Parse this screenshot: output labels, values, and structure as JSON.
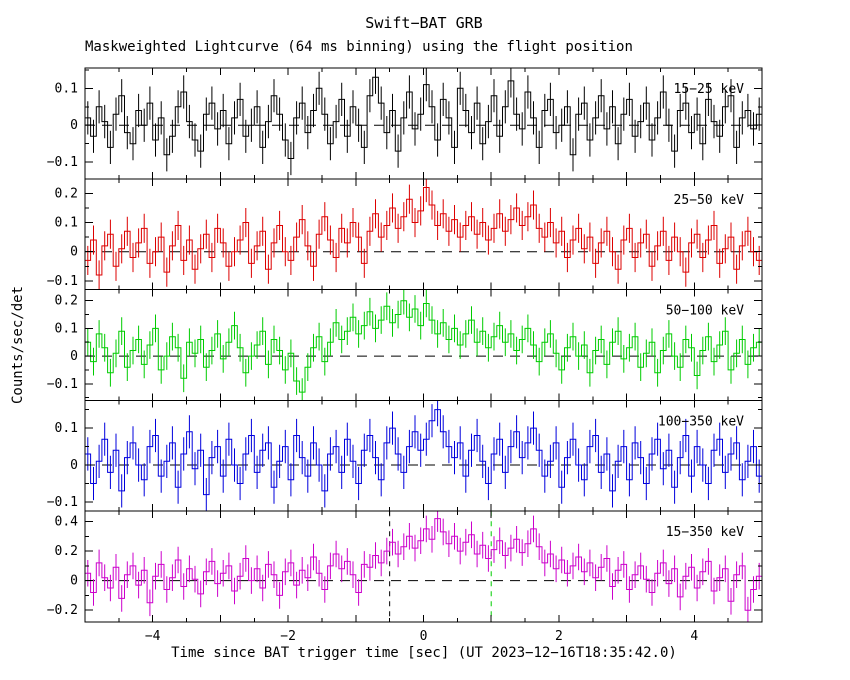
{
  "titles": {
    "main": "Swift−BAT GRB",
    "sub": "Maskweighted Lightcurve (64 ms binning) using the flight position"
  },
  "axes": {
    "ylabel": "Counts/sec/det",
    "xlabel": "Time since BAT trigger time [sec] (UT 2023−12−16T18:35:42.0)",
    "xmin": -5,
    "xmax": 5,
    "xticks_major": [
      -4,
      -2,
      0,
      2,
      4
    ],
    "xtick_major_step": 1,
    "xtick_minor_step": 0.5
  },
  "chart_data": {
    "type": "line",
    "title": "Swift−BAT GRB Maskweighted Lightcurve (64 ms binning) using the flight position",
    "xlabel": "Time since BAT trigger time [sec] (UT 2023−12−16T18:35:42.0)",
    "ylabel": "Counts/sec/det",
    "x_start": -5,
    "x_end": 5,
    "grid": false,
    "legend_position": "inside-top-right-per-panel",
    "panels": [
      {
        "label": "15−25 keV",
        "color": "#000000",
        "ymin": -0.145,
        "ymax": 0.155,
        "yticks": [
          0.1,
          0,
          -0.1
        ],
        "ytick_minor_step": 0.05,
        "err": 0.045,
        "values": [
          0.02,
          -0.03,
          0.05,
          0.01,
          -0.06,
          0.03,
          0.08,
          -0.02,
          -0.05,
          0.04,
          0.0,
          0.06,
          -0.04,
          0.02,
          -0.08,
          -0.03,
          0.05,
          0.09,
          0.01,
          -0.04,
          -0.07,
          0.03,
          0.06,
          -0.01,
          0.04,
          -0.05,
          0.02,
          0.07,
          -0.03,
          0.0,
          0.05,
          -0.06,
          0.01,
          0.08,
          0.03,
          -0.04,
          -0.09,
          0.02,
          0.06,
          -0.02,
          0.04,
          0.1,
          0.03,
          -0.05,
          0.01,
          0.07,
          -0.03,
          0.05,
          0.0,
          -0.06,
          0.08,
          0.13,
          0.06,
          -0.02,
          0.04,
          -0.07,
          0.02,
          0.09,
          -0.01,
          0.03,
          0.11,
          0.05,
          -0.04,
          0.07,
          0.02,
          -0.06,
          0.1,
          0.04,
          -0.02,
          0.06,
          -0.05,
          0.01,
          0.08,
          -0.03,
          0.05,
          0.12,
          0.03,
          -0.01,
          0.09,
          0.02,
          -0.06,
          0.04,
          0.07,
          -0.02,
          0.0,
          0.05,
          -0.08,
          0.03,
          0.06,
          -0.04,
          0.02,
          0.08,
          -0.01,
          0.05,
          -0.05,
          0.03,
          0.07,
          -0.03,
          0.01,
          0.06,
          -0.04,
          0.02,
          0.09,
          0.0,
          -0.07,
          0.04,
          0.06,
          -0.02,
          0.03,
          -0.05,
          0.07,
          0.01,
          -0.03,
          0.05,
          0.08,
          -0.06,
          0.02,
          0.04,
          -0.01,
          0.03
        ]
      },
      {
        "label": "25−50 keV",
        "color": "#dd0000",
        "ymin": -0.13,
        "ymax": 0.25,
        "yticks": [
          0.2,
          0.1,
          0,
          -0.1
        ],
        "ytick_minor_step": 0.05,
        "err": 0.05,
        "values": [
          -0.03,
          0.04,
          -0.08,
          0.02,
          0.06,
          -0.05,
          0.01,
          0.07,
          -0.02,
          0.03,
          0.08,
          -0.04,
          0.0,
          0.05,
          -0.07,
          0.02,
          0.09,
          -0.03,
          0.04,
          -0.06,
          0.01,
          0.06,
          -0.02,
          0.08,
          0.03,
          -0.05,
          0.0,
          0.04,
          0.1,
          -0.04,
          0.02,
          0.07,
          -0.06,
          0.03,
          0.09,
          0.0,
          -0.03,
          0.05,
          0.11,
          0.02,
          -0.05,
          0.06,
          0.12,
          0.04,
          -0.02,
          0.08,
          0.03,
          0.1,
          0.05,
          -0.04,
          0.07,
          0.13,
          0.05,
          0.09,
          0.15,
          0.08,
          0.12,
          0.18,
          0.1,
          0.14,
          0.22,
          0.16,
          0.09,
          0.13,
          0.07,
          0.11,
          0.05,
          0.09,
          0.12,
          0.06,
          0.1,
          0.04,
          0.08,
          0.13,
          0.07,
          0.11,
          0.15,
          0.09,
          0.12,
          0.16,
          0.08,
          0.05,
          0.1,
          0.03,
          0.07,
          -0.02,
          0.04,
          0.08,
          0.01,
          0.05,
          -0.04,
          0.03,
          0.07,
          0.0,
          -0.06,
          0.04,
          0.08,
          -0.02,
          0.03,
          0.06,
          -0.05,
          0.02,
          0.07,
          -0.03,
          0.05,
          0.0,
          -0.07,
          0.03,
          0.06,
          -0.02,
          0.04,
          0.09,
          -0.04,
          0.01,
          0.05,
          -0.06,
          0.02,
          0.07,
          0.0,
          -0.03
        ]
      },
      {
        "label": "50−100 keV",
        "color": "#00cc00",
        "ymin": -0.16,
        "ymax": 0.24,
        "yticks": [
          0.2,
          0.1,
          0,
          -0.1
        ],
        "ytick_minor_step": 0.05,
        "err": 0.05,
        "values": [
          0.05,
          -0.02,
          0.08,
          0.03,
          -0.06,
          0.01,
          0.09,
          -0.04,
          0.02,
          0.06,
          -0.03,
          0.04,
          0.1,
          -0.05,
          0.0,
          0.07,
          0.03,
          -0.08,
          0.05,
          0.01,
          0.06,
          -0.04,
          0.02,
          0.08,
          -0.01,
          0.05,
          0.11,
          0.03,
          -0.06,
          0.0,
          0.04,
          0.09,
          -0.03,
          0.06,
          0.02,
          -0.05,
          0.01,
          -0.09,
          -0.13,
          -0.04,
          0.03,
          0.07,
          -0.02,
          0.05,
          0.12,
          0.06,
          0.09,
          0.14,
          0.08,
          0.11,
          0.16,
          0.1,
          0.13,
          0.18,
          0.12,
          0.15,
          0.2,
          0.14,
          0.17,
          0.11,
          0.19,
          0.13,
          0.08,
          0.12,
          0.06,
          0.1,
          0.04,
          0.08,
          0.13,
          0.05,
          0.09,
          0.03,
          0.07,
          0.11,
          0.05,
          0.08,
          0.02,
          0.06,
          0.1,
          0.04,
          -0.02,
          0.05,
          0.08,
          0.01,
          -0.05,
          0.03,
          0.07,
          0.0,
          0.04,
          -0.06,
          0.02,
          0.06,
          -0.03,
          0.05,
          0.09,
          -0.01,
          0.03,
          0.07,
          -0.04,
          0.01,
          0.05,
          -0.06,
          0.02,
          0.08,
          0.0,
          -0.04,
          0.06,
          0.03,
          -0.07,
          0.02,
          0.07,
          -0.02,
          0.04,
          0.09,
          -0.05,
          0.01,
          0.06,
          -0.03,
          0.03,
          0.05
        ]
      },
      {
        "label": "100−350 keV",
        "color": "#0000dd",
        "ymin": -0.125,
        "ymax": 0.175,
        "yticks": [
          0.1,
          0,
          -0.1
        ],
        "ytick_minor_step": 0.05,
        "err": 0.045,
        "values": [
          0.03,
          -0.05,
          0.01,
          0.07,
          -0.02,
          0.04,
          -0.07,
          0.02,
          0.06,
          0.0,
          -0.04,
          0.05,
          0.08,
          -0.03,
          0.01,
          0.06,
          -0.06,
          0.03,
          0.09,
          -0.01,
          0.04,
          -0.08,
          0.02,
          0.05,
          -0.03,
          0.07,
          0.0,
          -0.05,
          0.03,
          0.08,
          -0.02,
          0.04,
          0.06,
          -0.06,
          0.01,
          0.05,
          -0.04,
          0.08,
          0.02,
          -0.03,
          0.06,
          0.0,
          -0.07,
          0.03,
          0.05,
          -0.02,
          0.07,
          0.01,
          -0.05,
          0.04,
          0.08,
          0.02,
          -0.04,
          0.06,
          0.1,
          0.03,
          -0.02,
          0.05,
          0.09,
          0.04,
          0.07,
          0.12,
          0.15,
          0.09,
          0.05,
          0.02,
          0.06,
          -0.03,
          0.04,
          0.08,
          0.01,
          -0.05,
          0.03,
          0.07,
          -0.02,
          0.05,
          0.09,
          0.02,
          0.06,
          0.1,
          0.04,
          -0.03,
          0.01,
          0.06,
          -0.06,
          0.02,
          0.07,
          0.0,
          -0.04,
          0.05,
          0.08,
          -0.02,
          0.03,
          -0.07,
          0.01,
          0.05,
          -0.04,
          0.06,
          0.02,
          -0.05,
          0.03,
          0.07,
          -0.01,
          0.04,
          -0.06,
          0.02,
          0.08,
          -0.03,
          0.05,
          0.0,
          -0.05,
          0.04,
          0.07,
          -0.02,
          0.03,
          0.06,
          -0.04,
          0.01,
          0.05,
          -0.03
        ]
      },
      {
        "label": "15−350 keV",
        "color": "#cc00cc",
        "ymin": -0.28,
        "ymax": 0.47,
        "yticks": [
          0.4,
          0.2,
          0,
          -0.2
        ],
        "ytick_minor_step": 0.1,
        "err": 0.09,
        "markers": [
          {
            "x": -0.5,
            "color": "#000000"
          },
          {
            "x": 1.0,
            "color": "#00cc00"
          }
        ],
        "values": [
          0.05,
          -0.08,
          0.12,
          0.02,
          -0.05,
          0.09,
          -0.12,
          0.04,
          0.1,
          -0.03,
          0.07,
          -0.15,
          0.03,
          0.11,
          -0.06,
          0.02,
          0.14,
          -0.04,
          0.08,
          0.01,
          -0.09,
          0.06,
          0.13,
          -0.02,
          0.05,
          0.1,
          -0.07,
          0.03,
          0.15,
          0.0,
          0.08,
          -0.05,
          0.11,
          0.04,
          -0.1,
          0.06,
          0.12,
          -0.03,
          0.07,
          0.02,
          0.16,
          0.05,
          -0.06,
          0.1,
          0.18,
          0.08,
          0.13,
          0.04,
          -0.08,
          0.11,
          0.09,
          0.17,
          0.12,
          0.2,
          0.26,
          0.18,
          0.23,
          0.3,
          0.22,
          0.27,
          0.35,
          0.28,
          0.42,
          0.33,
          0.25,
          0.3,
          0.2,
          0.26,
          0.31,
          0.18,
          0.24,
          0.15,
          0.21,
          0.27,
          0.17,
          0.22,
          0.28,
          0.19,
          0.25,
          0.35,
          0.23,
          0.12,
          0.18,
          0.08,
          0.14,
          0.05,
          0.1,
          0.16,
          0.06,
          0.12,
          0.02,
          0.09,
          0.15,
          -0.04,
          0.07,
          0.11,
          -0.06,
          0.04,
          0.1,
          0.01,
          -0.08,
          0.05,
          0.12,
          -0.02,
          0.08,
          -0.11,
          0.03,
          0.09,
          -0.05,
          0.06,
          0.13,
          -0.07,
          0.02,
          0.08,
          -0.14,
          0.04,
          0.1,
          -0.2,
          -0.06,
          0.03
        ]
      }
    ]
  }
}
